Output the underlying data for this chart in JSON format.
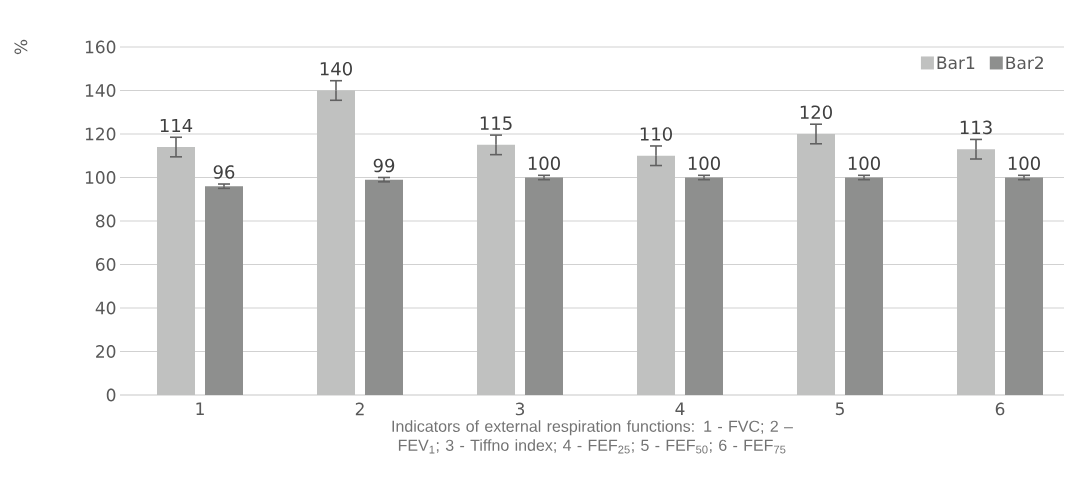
{
  "chart_data": {
    "type": "bar",
    "xlabel": "Indicators of external respiration functions: 1 - FVC; 2 – FEV$_{1}$; 3 - Tiffno index; 4 - FEF$_{25}$; 5 - FEF$_{50}$; 6 - FEF$_{75}$",
    "ylabel": "%",
    "categories": [
      "1",
      "2",
      "3",
      "4",
      "5",
      "6"
    ],
    "series": [
      {
        "name": "Bar1",
        "color": "#c0c1c0",
        "values": [
          114,
          140,
          115,
          110,
          120,
          113
        ],
        "errors": [
          4.5,
          4.5,
          4.5,
          4.5,
          4.5,
          4.5
        ]
      },
      {
        "name": "Bar2",
        "color": "#8e8f8e",
        "values": [
          96,
          99,
          100,
          100,
          100,
          100
        ],
        "errors": [
          1,
          1,
          1,
          1,
          1,
          1
        ]
      }
    ],
    "ylim": [
      0,
      160
    ],
    "yticks": [
      0,
      20,
      40,
      60,
      80,
      100,
      120,
      140,
      160
    ],
    "grid": "y",
    "legend": "top right",
    "data_labels": true
  }
}
